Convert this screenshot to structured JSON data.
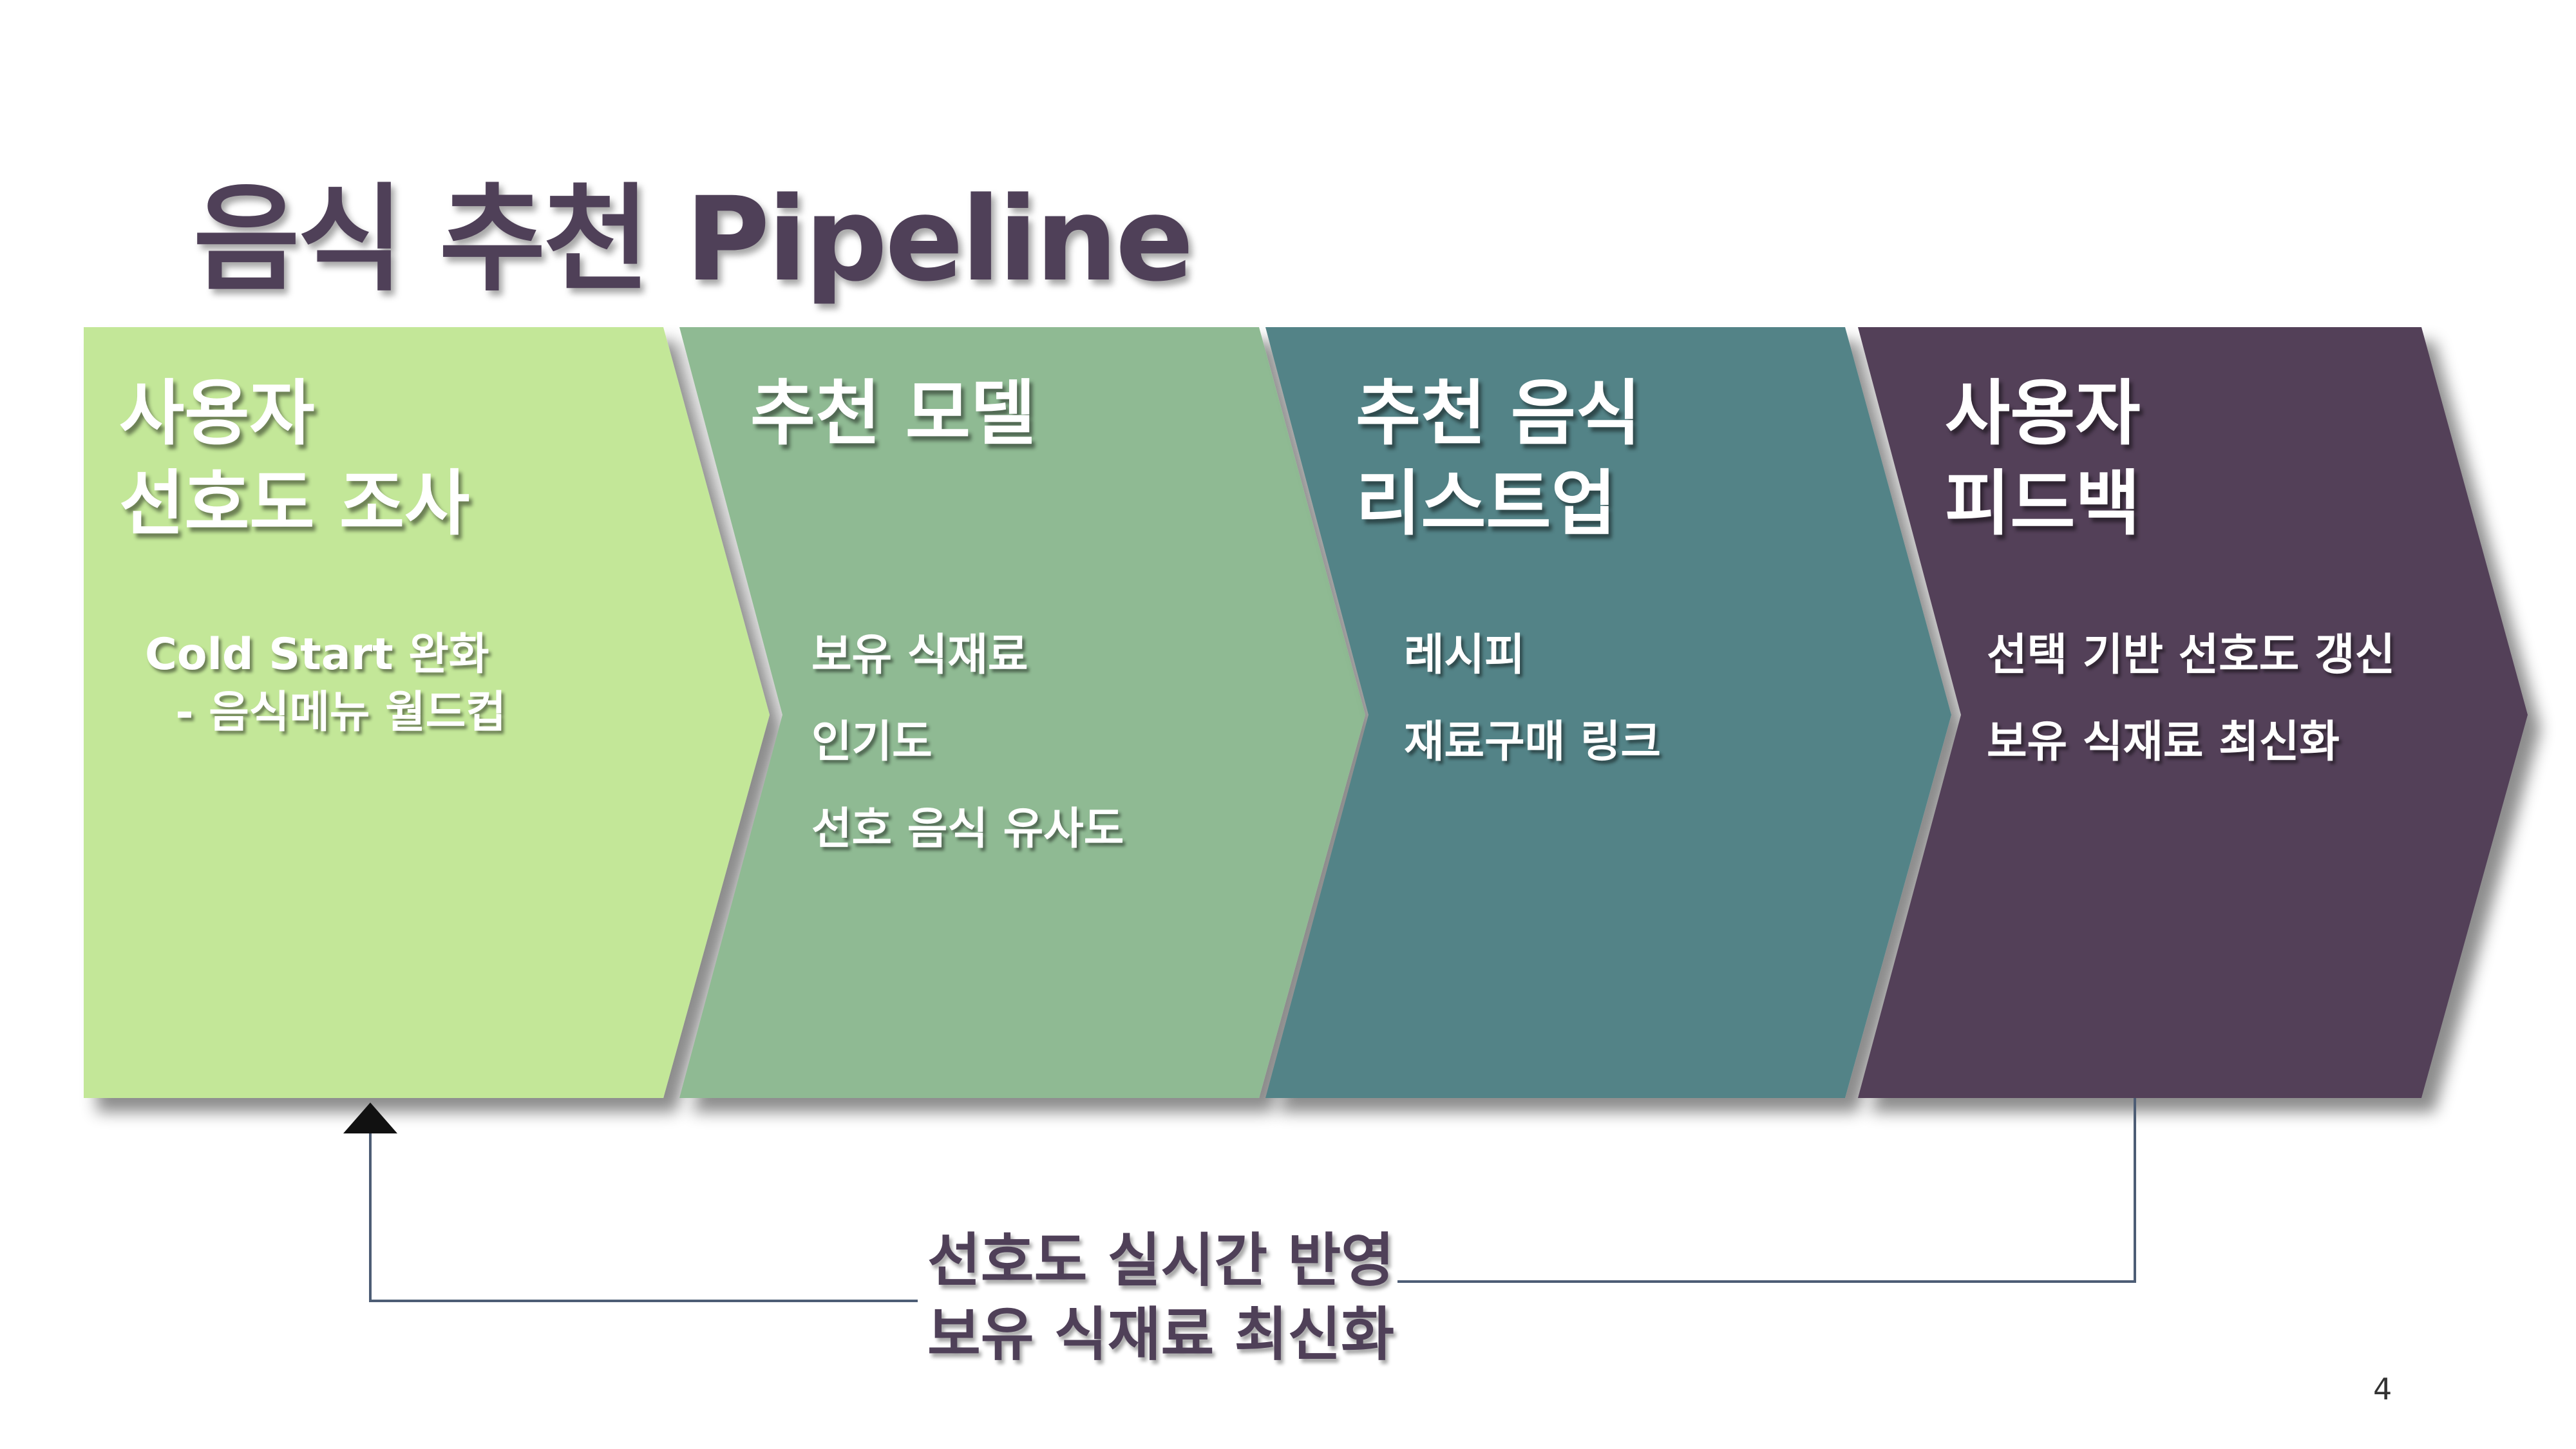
{
  "title": "음식 추천 Pipeline",
  "colors": {
    "title": "#4f4058",
    "stage1": "#c3e798",
    "stage2": "#8fba93",
    "stage3": "#528387",
    "stage4": "#534058",
    "loop_line": "#4d5d75"
  },
  "stages": [
    {
      "title_lines": [
        "사용자",
        "선호도 조사"
      ],
      "items": [
        "Cold Start 완화",
        "  - 음식메뉴 월드컵"
      ]
    },
    {
      "title_lines": [
        "추천 모델"
      ],
      "items": [
        "보유 식재료",
        "인기도",
        "선호 음식 유사도"
      ]
    },
    {
      "title_lines": [
        "추천 음식",
        "리스트업"
      ],
      "items": [
        "레시피",
        "재료구매 링크"
      ]
    },
    {
      "title_lines": [
        "사용자",
        "피드백"
      ],
      "items": [
        "선택 기반 선호도 갱신",
        "보유 식재료 최신화"
      ]
    }
  ],
  "feedback_loop": {
    "lines": [
      "선호도 실시간 반영",
      "보유 식재료 최신화"
    ],
    "arrow_icon": "triangle-up-arrow-icon"
  },
  "page_number": "4"
}
